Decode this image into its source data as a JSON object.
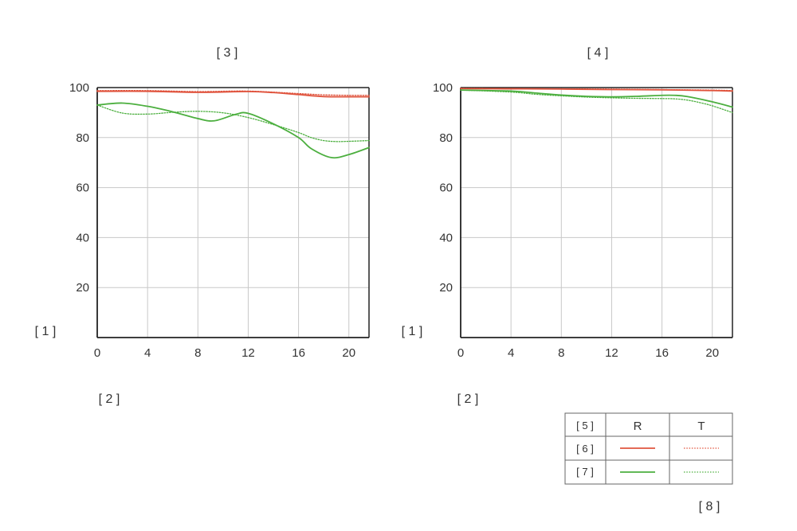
{
  "refs": {
    "ylabel": "[ 1 ]",
    "xlabel": "[ 2 ]",
    "left_title": "[ 3 ]",
    "right_title": "[ 4 ]",
    "legend_header": "[ 5 ]",
    "legend_row1": "[ 6 ]",
    "legend_row2": "[ 7 ]",
    "footer": "[ 8 ]"
  },
  "legend": {
    "col_r": "R",
    "col_t": "T",
    "colors": {
      "red": "#e0543e",
      "green": "#4caf3f"
    }
  },
  "chart_data": [
    {
      "type": "line",
      "title": "[ 3 ]",
      "xlabel": "[ 2 ]",
      "ylabel": "[ 1 ]",
      "xlim": [
        0,
        21.6
      ],
      "ylim": [
        0,
        100
      ],
      "xticks": [
        0,
        4,
        8,
        12,
        16,
        20
      ],
      "yticks": [
        20,
        40,
        60,
        80,
        100
      ],
      "grid": true,
      "series": [
        {
          "color": "#e0543e",
          "style": "solid",
          "x": [
            0,
            4,
            8,
            12,
            14,
            16,
            18,
            20,
            21.6
          ],
          "y": [
            98.5,
            98.5,
            98.1,
            98.4,
            98.0,
            97.2,
            96.4,
            96.3,
            96.3
          ]
        },
        {
          "color": "#e0543e",
          "style": "dotted",
          "x": [
            0,
            4,
            8,
            12,
            16,
            18,
            20,
            21.6
          ],
          "y": [
            98.8,
            98.8,
            98.4,
            98.6,
            97.6,
            97.1,
            96.9,
            96.9
          ]
        },
        {
          "color": "#4caf3f",
          "style": "solid",
          "x": [
            0,
            2,
            4,
            6,
            8,
            9.3,
            11,
            12,
            14,
            16,
            17,
            18.6,
            20,
            21.6
          ],
          "y": [
            93,
            93.8,
            92.5,
            90.3,
            87.6,
            86.7,
            89.3,
            89.7,
            85.5,
            80,
            75.6,
            72.0,
            73.2,
            76
          ]
        },
        {
          "color": "#4caf3f",
          "style": "dotted",
          "x": [
            0,
            2,
            4,
            6,
            8,
            10,
            12,
            14,
            16,
            17,
            18,
            19,
            20,
            21.6
          ],
          "y": [
            93,
            89.8,
            89.4,
            90.1,
            90.5,
            89.9,
            88,
            85.2,
            82,
            80,
            78.8,
            78.4,
            78.5,
            78.8
          ]
        }
      ]
    },
    {
      "type": "line",
      "title": "[ 4 ]",
      "xlabel": "[ 2 ]",
      "ylabel": "[ 1 ]",
      "xlim": [
        0,
        21.6
      ],
      "ylim": [
        0,
        100
      ],
      "xticks": [
        0,
        4,
        8,
        12,
        16,
        20
      ],
      "yticks": [
        20,
        40,
        60,
        80,
        100
      ],
      "grid": true,
      "series": [
        {
          "color": "#e0543e",
          "style": "solid",
          "x": [
            0,
            4,
            8,
            12,
            16,
            20,
            21.6
          ],
          "y": [
            99.6,
            99.5,
            99.4,
            99.2,
            99.1,
            98.8,
            98.6
          ]
        },
        {
          "color": "#e0543e",
          "style": "dotted",
          "x": [
            0,
            4,
            8,
            12,
            16,
            20,
            21.6
          ],
          "y": [
            99.7,
            99.6,
            99.5,
            99.4,
            99.2,
            99.0,
            98.8
          ]
        },
        {
          "color": "#4caf3f",
          "style": "solid",
          "x": [
            0,
            4,
            6,
            8,
            10,
            12,
            14,
            16,
            17,
            18,
            20,
            21.6
          ],
          "y": [
            99,
            98.6,
            97.8,
            97,
            96.5,
            96.3,
            96.5,
            96.9,
            96.9,
            96.4,
            94.3,
            92.2
          ]
        },
        {
          "color": "#4caf3f",
          "style": "dotted",
          "x": [
            0,
            4,
            6,
            8,
            10,
            12,
            14,
            16,
            17,
            18,
            19,
            20,
            21.6
          ],
          "y": [
            99,
            98.2,
            97.3,
            96.7,
            96.2,
            95.9,
            95.7,
            95.6,
            95.5,
            95,
            94,
            92.7,
            90
          ]
        }
      ]
    }
  ]
}
